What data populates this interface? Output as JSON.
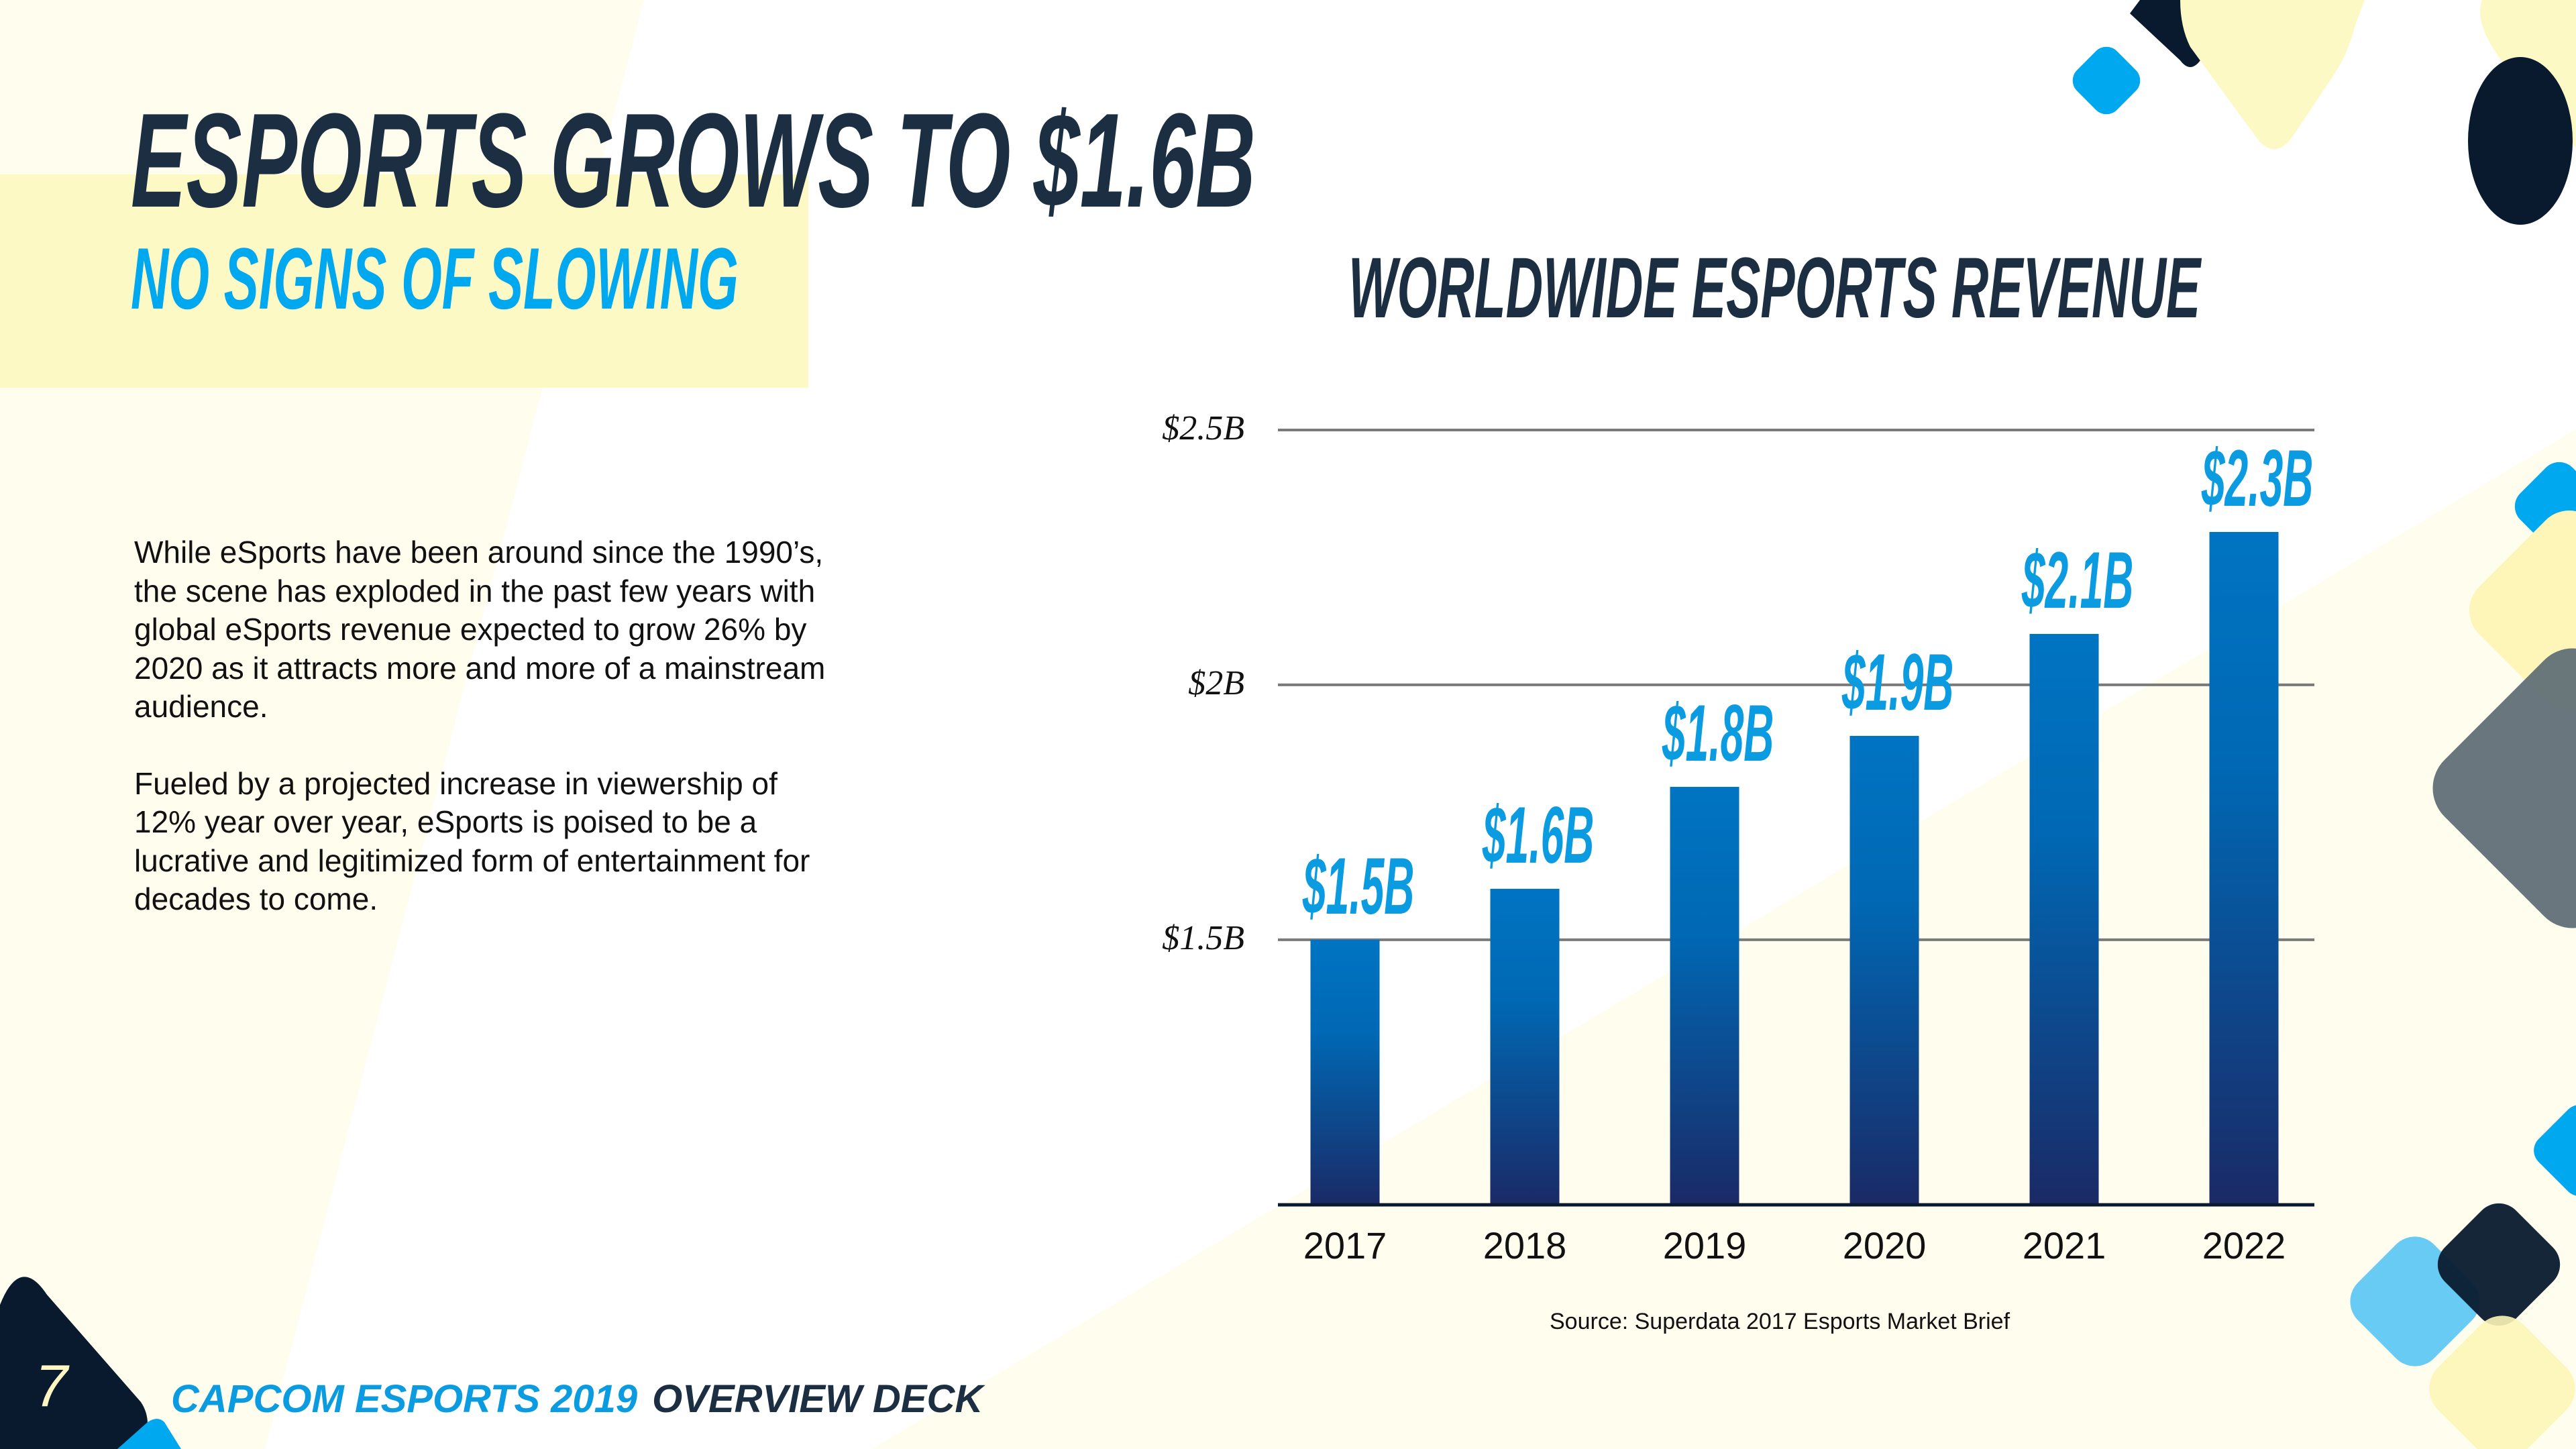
{
  "slide": {
    "title": "ESPORTS GROWS TO $1.6B",
    "subtitle": "NO SIGNS OF SLOWING",
    "body": [
      "While eSports have been around since the 1990’s, the scene has exploded in the past few years with global eSports revenue expected to grow 26% by 2020 as it attracts more and more of a mainstream audience.",
      "Fueled by a projected increase in viewership of 12% year over year, eSports is poised to be a lucrative and legitimized form of entertainment for decades to come."
    ],
    "page_number": "7",
    "footer_brand": "CAPCOM ESPORTS 2019",
    "footer_deck": "OVERVIEW DECK",
    "source": "Source: Superdata 2017 Esports Market Brief"
  },
  "colors": {
    "navy": "#1b2e42",
    "accent_blue": "#00a8f0",
    "bar_top": "#0074c2",
    "bar_bottom": "#1a2a66",
    "yellow": "#fdf9c4",
    "dark": "#0a1a2e"
  },
  "chart_data": {
    "type": "bar",
    "title": "WORLDWIDE ESPORTS REVENUE",
    "xlabel": "",
    "ylabel": "",
    "categories": [
      "2017",
      "2018",
      "2019",
      "2020",
      "2021",
      "2022"
    ],
    "values": [
      1.5,
      1.6,
      1.8,
      1.9,
      2.1,
      2.3
    ],
    "value_labels": [
      "$1.5B",
      "$1.6B",
      "$1.8B",
      "$1.9B",
      "$2.1B",
      "$2.3B"
    ],
    "units": "billions USD",
    "yticks": [
      {
        "value": 2.5,
        "label": "$2.5B"
      },
      {
        "value": 2.0,
        "label": "$2B"
      },
      {
        "value": 1.5,
        "label": "$1.5B"
      }
    ],
    "ylim": [
      0.98,
      2.5
    ],
    "grid": true,
    "legend": "none"
  }
}
